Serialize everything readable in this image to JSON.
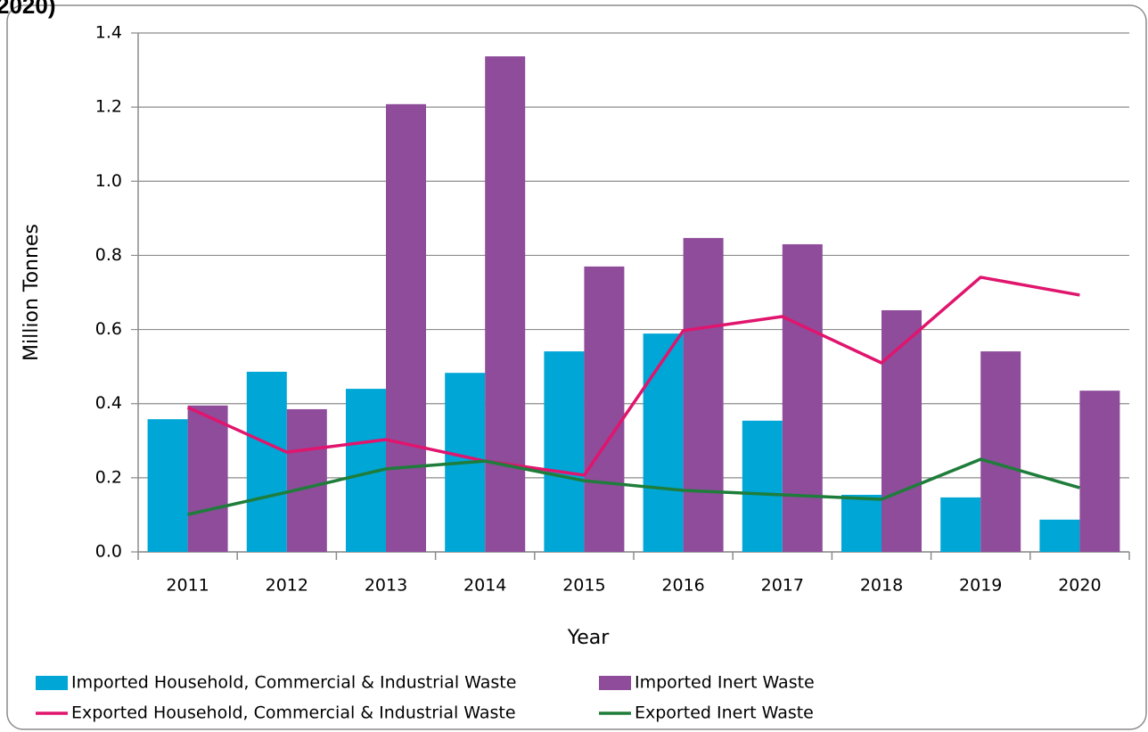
{
  "chart_data": {
    "type": "bar",
    "title": "2020)",
    "xlabel": "Year",
    "ylabel": "Million Tonnes",
    "categories": [
      "2011",
      "2012",
      "2013",
      "2014",
      "2015",
      "2016",
      "2017",
      "2018",
      "2019",
      "2020"
    ],
    "series": [
      {
        "name": "Imported Household, Commercial & Industrial Waste",
        "type": "bar",
        "color": "#00a6d6",
        "values": [
          0.358,
          0.486,
          0.44,
          0.483,
          0.541,
          0.589,
          0.354,
          0.154,
          0.147,
          0.087
        ]
      },
      {
        "name": "Imported Inert Waste",
        "type": "bar",
        "color": "#8e4c9b",
        "values": [
          0.395,
          0.385,
          1.208,
          1.337,
          0.77,
          0.847,
          0.83,
          0.652,
          0.541,
          0.435
        ]
      },
      {
        "name": "Exported Household, Commercial & Industrial Waste",
        "type": "line",
        "color": "#e0156d",
        "values": [
          0.39,
          0.269,
          0.303,
          0.245,
          0.207,
          0.597,
          0.635,
          0.51,
          0.741,
          0.693
        ]
      },
      {
        "name": "Exported Inert Waste",
        "type": "line",
        "color": "#1e7d3a",
        "values": [
          0.101,
          0.161,
          0.224,
          0.245,
          0.192,
          0.166,
          0.154,
          0.142,
          0.25,
          0.173
        ]
      }
    ],
    "ylim": [
      0,
      1.4
    ],
    "yticks": [
      {
        "value": 0,
        "label": "0.0"
      },
      0.2,
      0.4,
      0.6,
      0.8,
      {
        "value": 1,
        "label": "1.0"
      },
      1.2,
      1.4
    ],
    "grid": true,
    "legend": "bottom"
  }
}
